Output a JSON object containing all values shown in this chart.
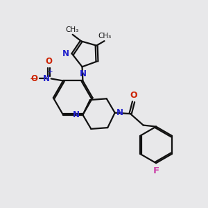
{
  "bg_color": "#e8e8ea",
  "bond_color": "#111111",
  "N_color": "#2222cc",
  "O_color": "#cc2200",
  "F_color": "#cc44aa",
  "line_width": 1.6,
  "figsize": [
    3.0,
    3.0
  ],
  "dpi": 100,
  "xlim": [
    0,
    10
  ],
  "ylim": [
    0,
    10
  ]
}
